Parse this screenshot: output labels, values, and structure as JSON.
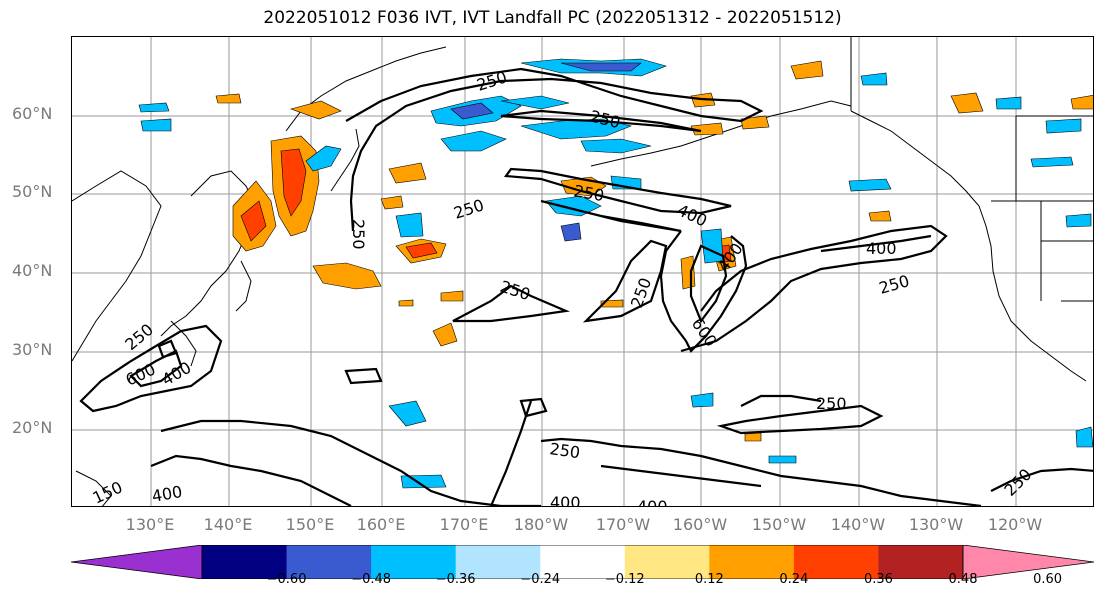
{
  "title": "2022051012 F036 IVT, IVT Landfall PC (2022051312 - 2022051512)",
  "lat_labels": [
    "60°N",
    "50°N",
    "40°N",
    "30°N",
    "20°N"
  ],
  "lon_labels": [
    "130°E",
    "140°E",
    "150°E",
    "160°E",
    "170°E",
    "180°W",
    "170°W",
    "160°W",
    "150°W",
    "140°W",
    "130°W",
    "120°W"
  ],
  "contour_labels": {
    "c250_a": "250",
    "c250_b": "250",
    "c250_c": "250",
    "c250_d": "250",
    "c250_e": "250",
    "c250_f": "250",
    "c250_g": "250",
    "c250_h": "250",
    "c250_i": "250",
    "c250_j": "250",
    "c250_k": "250",
    "c400_a": "400",
    "c400_b": "400",
    "c400_c": "400",
    "c400_d": "400",
    "c400_e": "400",
    "c400_f": "400",
    "c400_g": "400",
    "c600_a": "600",
    "c600_b": "600",
    "c150": "150"
  },
  "colorbar": {
    "colors": [
      "#9b30d0",
      "#000080",
      "#3a5ad0",
      "#00bfff",
      "#b0e4ff",
      "#ffffff",
      "#ffe784",
      "#ffa000",
      "#ff4000",
      "#b22222",
      "#ff88aa"
    ],
    "tick_labels": [
      "−0.60",
      "−0.48",
      "−0.36",
      "−0.24",
      "−0.12",
      "0.12",
      "0.24",
      "0.36",
      "0.48",
      "0.60"
    ]
  }
}
